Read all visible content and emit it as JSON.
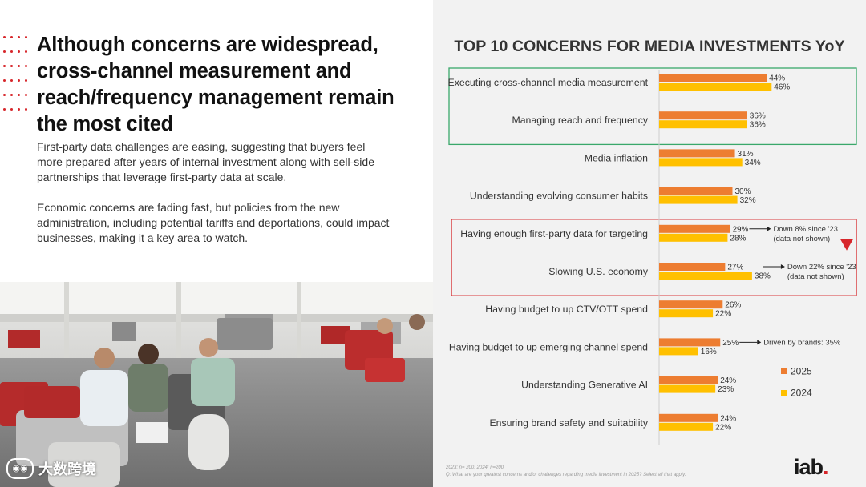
{
  "headline": "Although concerns are widespread, cross-channel measurement and reach/frequency management remain the most cited",
  "paragraphs": [
    "First-party data challenges are easing, suggesting that buyers feel more prepared after years of internal investment along with sell-side partnerships that leverage first-party data at scale.",
    "Economic concerns are fading fast, but policies from the new administration, including potential tariffs and deportations, could impact businesses, making it a key area to watch."
  ],
  "watermark": "大数跨境",
  "colors": {
    "series_2025": "#ed7d31",
    "series_2024": "#ffc000",
    "highlight_green": "#3aa86b",
    "highlight_red": "#d7262b",
    "accent_red": "#d7262b"
  },
  "chart_data": {
    "type": "bar",
    "orientation": "horizontal",
    "title": "TOP 10 CONCERNS FOR MEDIA INVESTMENTS YoY",
    "categories": [
      "Executing cross-channel media measurement",
      "Managing reach and frequency",
      "Media inflation",
      "Understanding evolving consumer habits",
      "Having enough first-party data for targeting",
      "Slowing U.S. economy",
      "Having budget to up CTV/OTT spend",
      "Having budget to up emerging channel spend",
      "Understanding Generative AI",
      "Ensuring brand safety and suitability"
    ],
    "series": [
      {
        "name": "2025",
        "values": [
          44,
          36,
          31,
          30,
          29,
          27,
          26,
          25,
          24,
          24
        ]
      },
      {
        "name": "2024",
        "values": [
          46,
          36,
          34,
          32,
          28,
          38,
          22,
          16,
          23,
          22
        ]
      }
    ],
    "data_labels": {
      "2025": [
        "44%",
        "36%",
        "31%",
        "30%",
        "29%",
        "27%",
        "26%",
        "25%",
        "24%",
        "24%"
      ],
      "2024": [
        "46%",
        "36%",
        "34%",
        "32%",
        "28%",
        "38%",
        "22%",
        "16%",
        "23%",
        "22%"
      ]
    },
    "annotations": [
      {
        "row": 4,
        "text": "Down 8% since '23\n(data not shown)"
      },
      {
        "row": 5,
        "text": "Down 22% since '23\n(data not shown)"
      },
      {
        "row": 7,
        "text": "Driven by brands: 35%"
      }
    ],
    "highlight_groups": [
      {
        "rows": [
          0,
          1
        ],
        "color": "green"
      },
      {
        "rows": [
          4,
          5
        ],
        "color": "red"
      }
    ],
    "legend": {
      "position": "right",
      "entries": [
        "2025",
        "2024"
      ]
    },
    "value_unit": "%",
    "grid": false
  },
  "footnote": [
    "2023: n= 200; 2024: n=200",
    "Q: What are your greatest concerns and/or challenges regarding media investment in 2025? Select all that apply."
  ],
  "logo": {
    "text": "iab",
    "dot": "."
  }
}
